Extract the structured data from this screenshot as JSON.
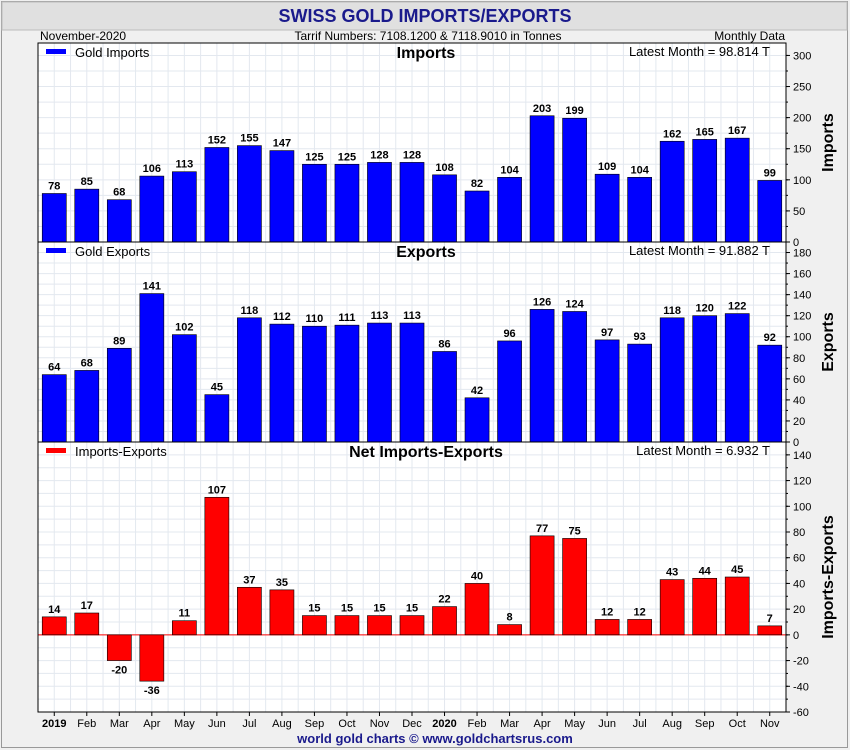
{
  "header": {
    "title": "SWISS GOLD IMPORTS/EXPORTS",
    "date": "November-2020",
    "tariff": "Tarrif Numbers: 7108.1200 & 7118.9010 in Tonnes",
    "frequency": "Monthly Data"
  },
  "footer": {
    "credit": "world gold charts © www.goldchartsrus.com"
  },
  "colors": {
    "blue": "#0000ff",
    "red": "#ff0000",
    "title": "#1a1a8c",
    "credit": "#1a1a8c"
  },
  "chart_data": [
    {
      "type": "bar",
      "title": "Imports",
      "ylabel": "Imports",
      "legend": "Gold Imports",
      "legend_placement": "top-left",
      "latest": "Latest Month = 98.814 T",
      "ylim": [
        0,
        320
      ],
      "yticks": [
        0,
        50,
        100,
        150,
        200,
        250,
        300
      ],
      "grid": true,
      "color": "#0000ff",
      "categories": [
        "2019",
        "Feb",
        "Mar",
        "Apr",
        "May",
        "Jun",
        "Jul",
        "Aug",
        "Sep",
        "Oct",
        "Nov",
        "Dec",
        "2020",
        "Feb",
        "Mar",
        "Apr",
        "May",
        "Jun",
        "Jul",
        "Aug",
        "Sep",
        "Oct",
        "Nov"
      ],
      "values": [
        78,
        85,
        68,
        106,
        113,
        152,
        155,
        147,
        125,
        125,
        128,
        128,
        108,
        82,
        104,
        203,
        199,
        109,
        104,
        162,
        165,
        167,
        99
      ]
    },
    {
      "type": "bar",
      "title": "Exports",
      "ylabel": "Exports",
      "legend": "Gold Exports",
      "legend_placement": "top-left",
      "latest": "Latest Month = 91.882 T",
      "ylim": [
        0,
        190
      ],
      "yticks": [
        0,
        20,
        40,
        60,
        80,
        100,
        120,
        140,
        160,
        180
      ],
      "grid": true,
      "color": "#0000ff",
      "categories": [
        "2019",
        "Feb",
        "Mar",
        "Apr",
        "May",
        "Jun",
        "Jul",
        "Aug",
        "Sep",
        "Oct",
        "Nov",
        "Dec",
        "2020",
        "Feb",
        "Mar",
        "Apr",
        "May",
        "Jun",
        "Jul",
        "Aug",
        "Sep",
        "Oct",
        "Nov"
      ],
      "values": [
        64,
        68,
        89,
        141,
        102,
        45,
        118,
        112,
        110,
        111,
        113,
        113,
        86,
        42,
        96,
        126,
        124,
        97,
        93,
        118,
        120,
        122,
        92
      ]
    },
    {
      "type": "bar",
      "title": "Net Imports-Exports",
      "ylabel": "Imports-Exports",
      "legend": "Imports-Exports",
      "legend_placement": "top-left",
      "latest": "Latest Month = 6.932 T",
      "ylim": [
        -60,
        150
      ],
      "yticks": [
        -60,
        -40,
        -20,
        0,
        20,
        40,
        60,
        80,
        100,
        120,
        140
      ],
      "grid": true,
      "color": "#ff0000",
      "categories": [
        "2019",
        "Feb",
        "Mar",
        "Apr",
        "May",
        "Jun",
        "Jul",
        "Aug",
        "Sep",
        "Oct",
        "Nov",
        "Dec",
        "2020",
        "Feb",
        "Mar",
        "Apr",
        "May",
        "Jun",
        "Jul",
        "Aug",
        "Sep",
        "Oct",
        "Nov"
      ],
      "values": [
        14,
        17,
        -20,
        -36,
        11,
        107,
        37,
        35,
        15,
        15,
        15,
        15,
        22,
        40,
        8,
        77,
        75,
        12,
        12,
        43,
        44,
        45,
        7
      ],
      "xaxis_labels": [
        "2019",
        "Feb",
        "Mar",
        "Apr",
        "May",
        "Jun",
        "Jul",
        "Aug",
        "Sep",
        "Oct",
        "Nov",
        "Dec",
        "2020",
        "Feb",
        "Mar",
        "Apr",
        "May",
        "Jun",
        "Jul",
        "Aug",
        "Sep",
        "Oct",
        "Nov"
      ]
    }
  ]
}
